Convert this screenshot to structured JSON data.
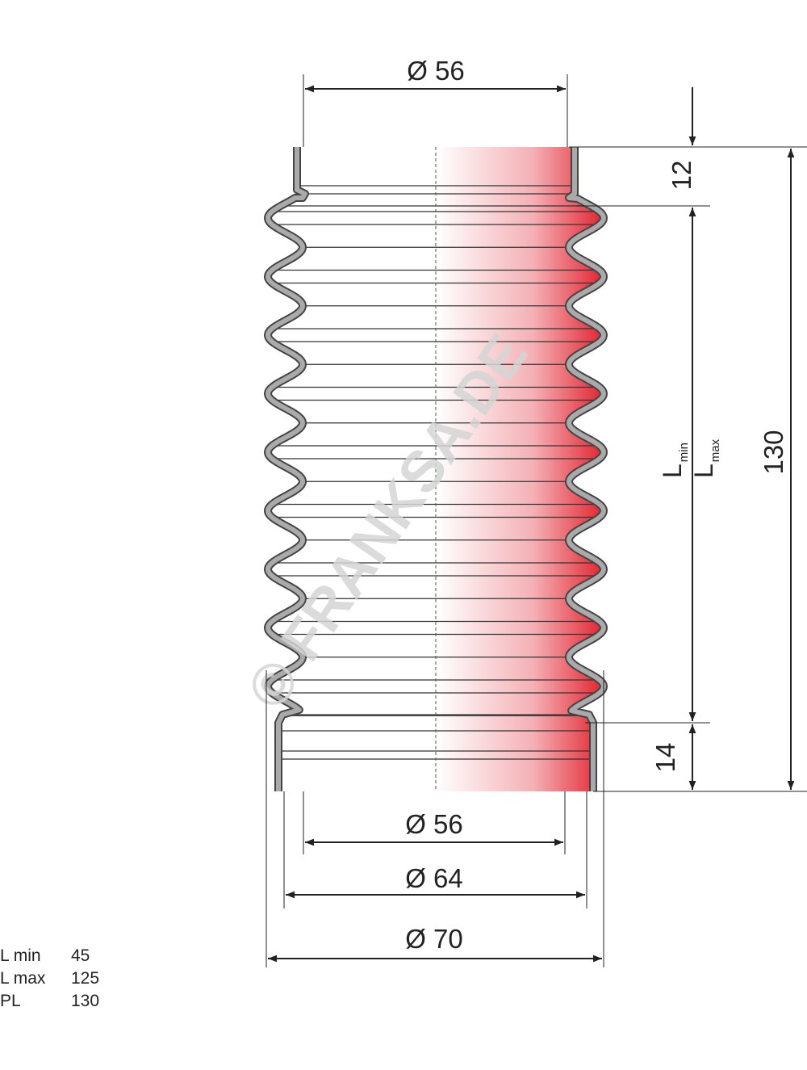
{
  "dimensions": {
    "top_diameter": "Ø 56",
    "top_cuff_height": "12",
    "total_height": "130",
    "bottom_cuff_height": "14",
    "bottom_inner_diameter": "Ø 56",
    "bottom_diameter": "Ø 64",
    "outer_diameter": "Ø 70",
    "l_min": {
      "symbol": "L",
      "subscript": "min"
    },
    "l_max": {
      "symbol": "L",
      "subscript": "max"
    }
  },
  "watermark": "© FRANKSA.DE",
  "specs": {
    "rows": [
      [
        "L min",
        "45"
      ],
      [
        "L max",
        "125"
      ],
      [
        "PL",
        "130"
      ]
    ]
  }
}
